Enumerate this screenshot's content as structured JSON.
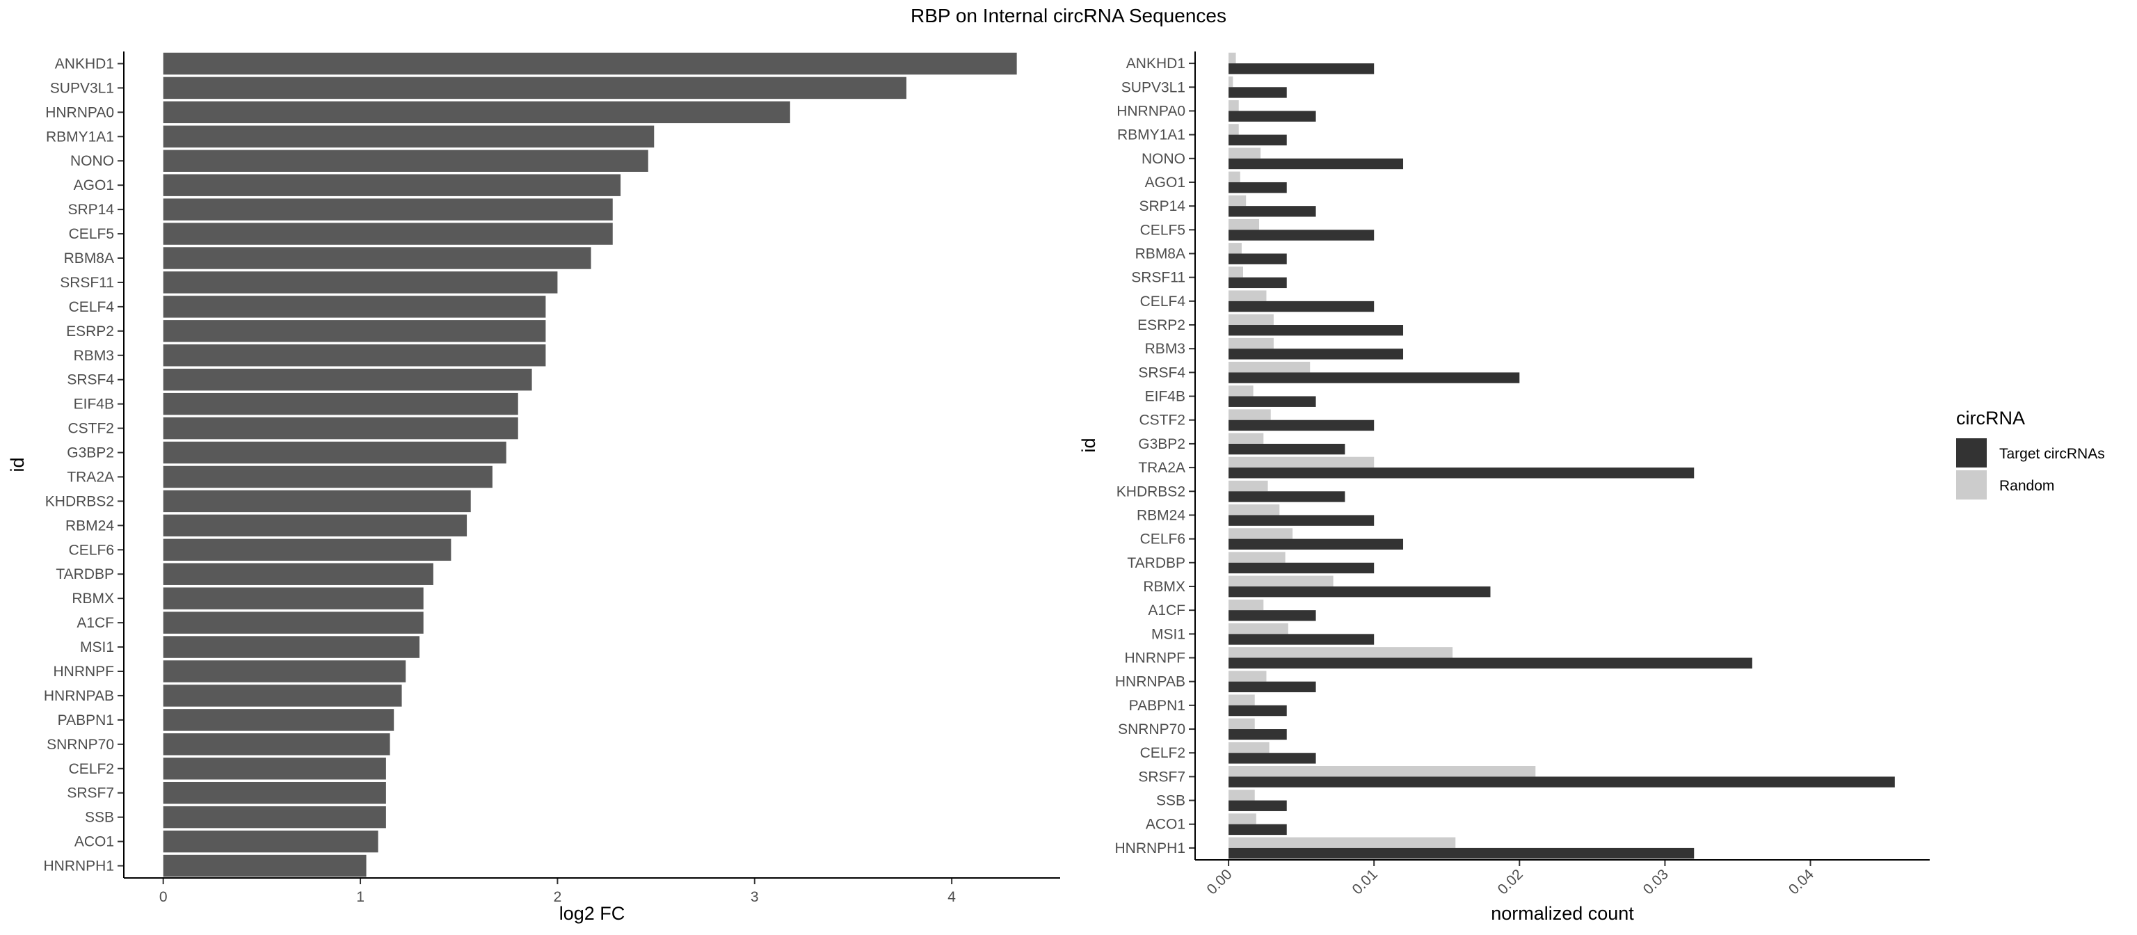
{
  "figure_title": "RBP on Internal circRNA Sequences",
  "chart_data": [
    {
      "type": "bar",
      "orientation": "horizontal",
      "title": "",
      "xlabel": "log2 FC",
      "ylabel": "id",
      "xlim": [
        -0.2,
        4.55
      ],
      "xticks": [
        0,
        1,
        2,
        3,
        4
      ],
      "grid": false,
      "bar_color": "#595959",
      "categories": [
        "ANKHD1",
        "SUPV3L1",
        "HNRNPA0",
        "RBMY1A1",
        "NONO",
        "AGO1",
        "SRP14",
        "CELF5",
        "RBM8A",
        "SRSF11",
        "CELF4",
        "ESRP2",
        "RBM3",
        "SRSF4",
        "EIF4B",
        "CSTF2",
        "G3BP2",
        "TRA2A",
        "KHDRBS2",
        "RBM24",
        "CELF6",
        "TARDBP",
        "RBMX",
        "A1CF",
        "MSI1",
        "HNRNPF",
        "HNRNPAB",
        "PABPN1",
        "SNRNP70",
        "CELF2",
        "SRSF7",
        "SSB",
        "ACO1",
        "HNRNPH1"
      ],
      "values": [
        4.33,
        3.77,
        3.18,
        2.49,
        2.46,
        2.32,
        2.28,
        2.28,
        2.17,
        2.0,
        1.94,
        1.94,
        1.94,
        1.87,
        1.8,
        1.8,
        1.74,
        1.67,
        1.56,
        1.54,
        1.46,
        1.37,
        1.32,
        1.32,
        1.3,
        1.23,
        1.21,
        1.17,
        1.15,
        1.13,
        1.13,
        1.13,
        1.09,
        1.03
      ]
    },
    {
      "type": "bar",
      "orientation": "horizontal",
      "grouped": true,
      "title": "",
      "xlabel": "normalized count",
      "ylabel": "id",
      "xlim": [
        -0.0023,
        0.0482
      ],
      "xticks": [
        0,
        0.01,
        0.02,
        0.03,
        0.04
      ],
      "xtick_labels": [
        "0.00",
        "0.01",
        "0.02",
        "0.03",
        "0.04"
      ],
      "grid": false,
      "legend": {
        "title": "circRNA",
        "position": "right"
      },
      "categories": [
        "ANKHD1",
        "SUPV3L1",
        "HNRNPA0",
        "RBMY1A1",
        "NONO",
        "AGO1",
        "SRP14",
        "CELF5",
        "RBM8A",
        "SRSF11",
        "CELF4",
        "ESRP2",
        "RBM3",
        "SRSF4",
        "EIF4B",
        "CSTF2",
        "G3BP2",
        "TRA2A",
        "KHDRBS2",
        "RBM24",
        "CELF6",
        "TARDBP",
        "RBMX",
        "A1CF",
        "MSI1",
        "HNRNPF",
        "HNRNPAB",
        "PABPN1",
        "SNRNP70",
        "CELF2",
        "SRSF7",
        "SSB",
        "ACO1",
        "HNRNPH1"
      ],
      "series": [
        {
          "name": "Target circRNAs",
          "color": "#333333",
          "values": [
            0.01,
            0.004,
            0.006,
            0.004,
            0.012,
            0.004,
            0.006,
            0.01,
            0.004,
            0.004,
            0.01,
            0.012,
            0.012,
            0.02,
            0.006,
            0.01,
            0.008,
            0.032,
            0.008,
            0.01,
            0.012,
            0.01,
            0.018,
            0.006,
            0.01,
            0.036,
            0.006,
            0.004,
            0.004,
            0.006,
            0.0458,
            0.004,
            0.004,
            0.032
          ]
        },
        {
          "name": "Random",
          "color": "#cccccc",
          "values": [
            0.0005,
            0.0003,
            0.0007,
            0.0007,
            0.0022,
            0.0008,
            0.0012,
            0.0021,
            0.0009,
            0.001,
            0.0026,
            0.0031,
            0.0031,
            0.0056,
            0.0017,
            0.0029,
            0.0024,
            0.01,
            0.0027,
            0.0035,
            0.0044,
            0.0039,
            0.0072,
            0.0024,
            0.0041,
            0.0154,
            0.0026,
            0.0018,
            0.0018,
            0.0028,
            0.0211,
            0.0018,
            0.0019,
            0.0156
          ]
        }
      ]
    }
  ]
}
